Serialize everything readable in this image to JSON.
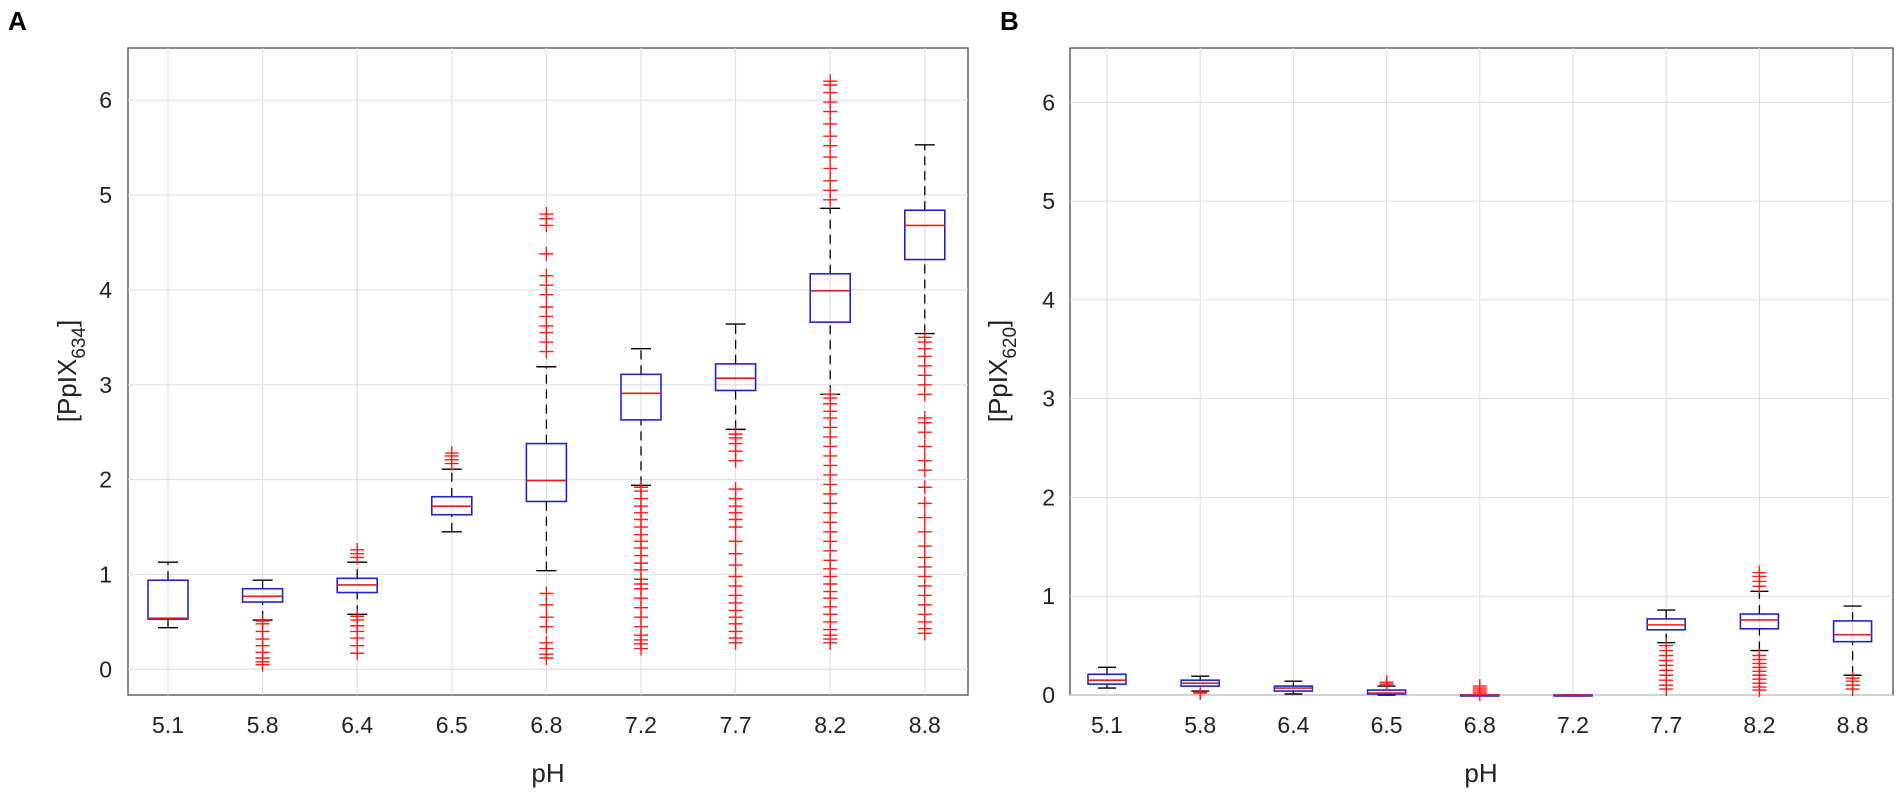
{
  "chart_data": [
    {
      "type": "box",
      "panel": "A",
      "xlabel": "pH",
      "ylabel_base": "[PpIX",
      "ylabel_sub": "634",
      "ylabel_end": "]",
      "ylim": [
        -0.27,
        6.55
      ],
      "yticks": [
        0,
        1,
        2,
        3,
        4,
        5,
        6
      ],
      "ytick_labels": [
        "0",
        "1",
        "2",
        "3",
        "4",
        "5",
        "6"
      ],
      "categories": [
        "5.1",
        "5.8",
        "6.4",
        "6.5",
        "6.8",
        "7.2",
        "7.7",
        "8.2",
        "8.8"
      ],
      "boxes": [
        {
          "q1": 0.53,
          "median": 0.54,
          "q3": 0.94,
          "low": 0.44,
          "high": 1.13,
          "outliers": []
        },
        {
          "q1": 0.71,
          "median": 0.77,
          "q3": 0.85,
          "low": 0.52,
          "high": 0.94,
          "outliers": [
            0.05,
            0.08,
            0.12,
            0.18,
            0.25,
            0.32,
            0.4,
            0.48,
            0.51
          ]
        },
        {
          "q1": 0.81,
          "median": 0.89,
          "q3": 0.96,
          "low": 0.58,
          "high": 1.13,
          "outliers": [
            0.17,
            0.25,
            0.33,
            0.4,
            0.46,
            0.52,
            0.56,
            1.18,
            1.22,
            1.26
          ]
        },
        {
          "q1": 1.63,
          "median": 1.72,
          "q3": 1.82,
          "low": 1.45,
          "high": 2.11,
          "outliers": [
            2.17,
            2.21,
            2.25,
            2.28
          ]
        },
        {
          "q1": 1.77,
          "median": 1.99,
          "q3": 2.38,
          "low": 1.04,
          "high": 3.19,
          "outliers": [
            0.12,
            0.16,
            0.22,
            0.28,
            0.45,
            0.55,
            0.68,
            0.8,
            3.35,
            3.45,
            3.55,
            3.62,
            3.72,
            3.82,
            3.95,
            4.05,
            4.15,
            4.38,
            4.68,
            4.75,
            4.8
          ]
        },
        {
          "q1": 2.63,
          "median": 2.91,
          "q3": 3.11,
          "low": 1.94,
          "high": 3.38,
          "outliers": [
            0.22,
            0.27,
            0.31,
            0.36,
            0.45,
            0.55,
            0.65,
            0.75,
            0.85,
            0.9,
            0.95,
            1.05,
            1.12,
            1.2,
            1.28,
            1.35,
            1.42,
            1.5,
            1.58,
            1.65,
            1.72,
            1.8,
            1.88,
            1.92
          ]
        },
        {
          "q1": 2.94,
          "median": 3.07,
          "q3": 3.22,
          "low": 2.53,
          "high": 3.64,
          "outliers": [
            0.28,
            0.33,
            0.4,
            0.48,
            0.55,
            0.62,
            0.7,
            0.78,
            0.88,
            0.98,
            1.1,
            1.22,
            1.35,
            1.5,
            1.58,
            1.65,
            1.72,
            1.8,
            1.9,
            2.2,
            2.3,
            2.38,
            2.44,
            2.48
          ]
        },
        {
          "q1": 3.66,
          "median": 3.99,
          "q3": 4.17,
          "low": 2.9,
          "high": 4.86,
          "outliers": [
            0.28,
            0.32,
            0.36,
            0.42,
            0.5,
            0.58,
            0.66,
            0.75,
            0.82,
            0.9,
            0.98,
            1.06,
            1.15,
            1.25,
            1.35,
            1.45,
            1.55,
            1.65,
            1.75,
            1.85,
            1.95,
            2.05,
            2.15,
            2.25,
            2.35,
            2.45,
            2.55,
            2.65,
            2.72,
            2.8,
            2.86,
            2.9,
            4.95,
            5.05,
            5.15,
            5.28,
            5.4,
            5.52,
            5.62,
            5.75,
            5.88,
            5.98,
            6.08,
            6.16,
            6.2
          ]
        },
        {
          "q1": 4.32,
          "median": 4.68,
          "q3": 4.84,
          "low": 3.54,
          "high": 5.53,
          "outliers": [
            0.38,
            0.43,
            0.5,
            0.58,
            0.68,
            0.78,
            0.88,
            0.98,
            1.08,
            1.18,
            1.3,
            1.45,
            1.6,
            1.75,
            1.92,
            2.1,
            2.2,
            2.35,
            2.5,
            2.6,
            2.65,
            2.9,
            3.0,
            3.1,
            3.2,
            3.3,
            3.38,
            3.45,
            3.5
          ]
        }
      ]
    },
    {
      "type": "box",
      "panel": "B",
      "xlabel": "pH",
      "ylabel_base": "[PpIX",
      "ylabel_sub": "620",
      "ylabel_end": "]",
      "ylim": [
        0,
        6.55
      ],
      "yticks": [
        0,
        1,
        2,
        3,
        4,
        5,
        6
      ],
      "ytick_labels": [
        "0",
        "1",
        "2",
        "3",
        "4",
        "5",
        "6"
      ],
      "categories": [
        "5.1",
        "5.8",
        "6.4",
        "6.5",
        "6.8",
        "7.2",
        "7.7",
        "8.2",
        "8.8"
      ],
      "boxes": [
        {
          "q1": 0.11,
          "median": 0.15,
          "q3": 0.21,
          "low": 0.07,
          "high": 0.28,
          "outliers": []
        },
        {
          "q1": 0.09,
          "median": 0.12,
          "q3": 0.15,
          "low": 0.04,
          "high": 0.19,
          "outliers": [
            0.02,
            0.03
          ]
        },
        {
          "q1": 0.04,
          "median": 0.07,
          "q3": 0.09,
          "low": 0.01,
          "high": 0.14,
          "outliers": []
        },
        {
          "q1": 0.01,
          "median": 0.02,
          "q3": 0.05,
          "low": 0.0,
          "high": 0.09,
          "outliers": [
            0.11,
            0.13
          ]
        },
        {
          "q1": 0.0,
          "median": 0.0,
          "q3": 0.0,
          "low": 0.0,
          "high": 0.0,
          "outliers": [
            0.01,
            0.03,
            0.05,
            0.07,
            0.09
          ]
        },
        {
          "q1": 0.0,
          "median": 0.0,
          "q3": 0.0,
          "low": 0.0,
          "high": 0.0,
          "outliers": []
        },
        {
          "q1": 0.66,
          "median": 0.71,
          "q3": 0.77,
          "low": 0.53,
          "high": 0.86,
          "outliers": [
            0.06,
            0.1,
            0.15,
            0.2,
            0.25,
            0.3,
            0.35,
            0.4,
            0.45,
            0.5
          ]
        },
        {
          "q1": 0.67,
          "median": 0.76,
          "q3": 0.82,
          "low": 0.45,
          "high": 1.05,
          "outliers": [
            0.05,
            0.08,
            0.12,
            0.16,
            0.2,
            0.24,
            0.28,
            0.32,
            0.36,
            0.4,
            1.1,
            1.15,
            1.2,
            1.24
          ]
        },
        {
          "q1": 0.54,
          "median": 0.61,
          "q3": 0.75,
          "low": 0.2,
          "high": 0.9,
          "outliers": [
            0.06,
            0.1,
            0.14,
            0.17
          ]
        }
      ]
    }
  ]
}
